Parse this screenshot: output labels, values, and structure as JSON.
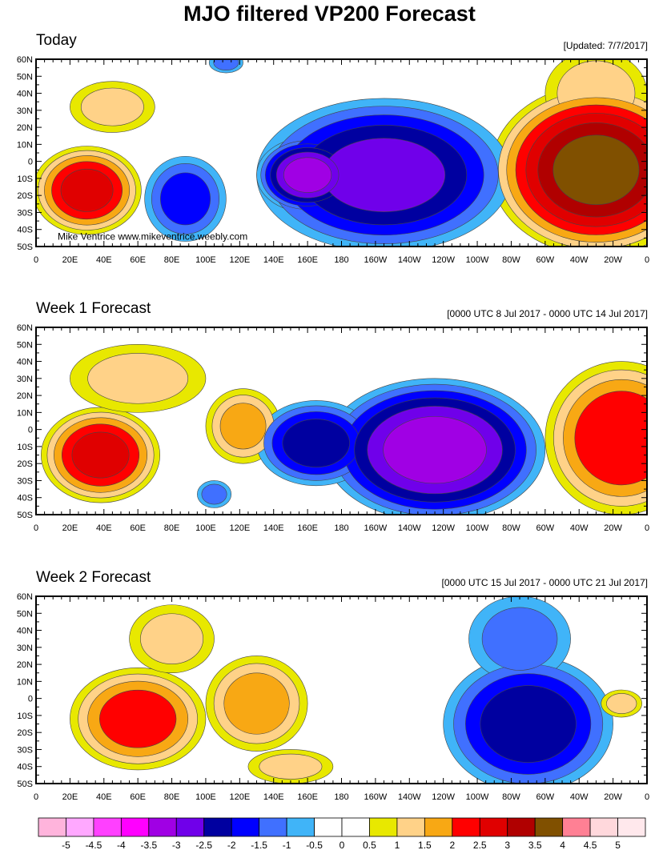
{
  "title": "MJO filtered VP200 Forecast",
  "credit": "Mike Ventrice www.mikeventrice.weebly.com",
  "lat_labels": [
    "60N",
    "50N",
    "40N",
    "30N",
    "20N",
    "10N",
    "0",
    "10S",
    "20S",
    "30S",
    "40S",
    "50S"
  ],
  "lon_labels": [
    "0",
    "20E",
    "40E",
    "60E",
    "80E",
    "100E",
    "120E",
    "140E",
    "160E",
    "180",
    "160W",
    "140W",
    "120W",
    "100W",
    "80W",
    "60W",
    "40W",
    "20W",
    "0"
  ],
  "colorbar": {
    "labels": [
      "-5",
      "-4.5",
      "-4",
      "-3.5",
      "-3",
      "-2.5",
      "-2",
      "-1.5",
      "-1",
      "-0.5",
      "0",
      "0.5",
      "1",
      "1.5",
      "2",
      "2.5",
      "3",
      "3.5",
      "4",
      "4.5",
      "5"
    ],
    "colors": [
      "#ffb4dc",
      "#ffa8ff",
      "#ff40ff",
      "#ff00ff",
      "#a000e4",
      "#7000ea",
      "#0000a0",
      "#0000ff",
      "#4070ff",
      "#40b4f8",
      "#ffffff",
      "#ffffff",
      "#e8e800",
      "#ffd288",
      "#f8a814",
      "#ff0000",
      "#e00000",
      "#b00000",
      "#805000",
      "#ff8094",
      "#ffd8dc",
      "#ffe8ec"
    ]
  },
  "panels": [
    {
      "title": "Today",
      "note": "[Updated: 7/7/2017]",
      "show_credit": true,
      "centers": [
        {
          "lon": 30,
          "lat": -17,
          "value": 2.6,
          "rlon": 32,
          "rlat": 26
        },
        {
          "lon": 45,
          "lat": 32,
          "value": 1.1,
          "rlon": 25,
          "rlat": 15
        },
        {
          "lon": 330,
          "lat": -5,
          "value": 3.6,
          "rlon": 62,
          "rlat": 50
        },
        {
          "lon": 330,
          "lat": 40,
          "value": 1.2,
          "rlon": 30,
          "rlat": 25
        },
        {
          "lon": 205,
          "lat": -8,
          "value": -2.6,
          "rlon": 75,
          "rlat": 45
        },
        {
          "lon": 160,
          "lat": -8,
          "value": -3.2,
          "rlon": 30,
          "rlat": 22
        },
        {
          "lon": 88,
          "lat": -22,
          "value": -1.6,
          "rlon": 24,
          "rlat": 25
        },
        {
          "lon": 112,
          "lat": 58,
          "value": -1.1,
          "rlon": 10,
          "rlat": 6
        }
      ]
    },
    {
      "title": "Week 1 Forecast",
      "note": "[0000 UTC 8 Jul 2017 - 0000 UTC 14 Jul 2017]",
      "show_credit": false,
      "centers": [
        {
          "lon": 38,
          "lat": -15,
          "value": 2.6,
          "rlon": 35,
          "rlat": 28
        },
        {
          "lon": 60,
          "lat": 30,
          "value": 1.1,
          "rlon": 40,
          "rlat": 20
        },
        {
          "lon": 122,
          "lat": 2,
          "value": 1.6,
          "rlon": 22,
          "rlat": 22
        },
        {
          "lon": 345,
          "lat": -5,
          "value": 2.4,
          "rlon": 45,
          "rlat": 45
        },
        {
          "lon": 235,
          "lat": -12,
          "value": -3.2,
          "rlon": 65,
          "rlat": 42
        },
        {
          "lon": 165,
          "lat": -8,
          "value": -2.2,
          "rlon": 35,
          "rlat": 25
        },
        {
          "lon": 105,
          "lat": -38,
          "value": -1.1,
          "rlon": 10,
          "rlat": 8
        }
      ]
    },
    {
      "title": "Week 2 Forecast",
      "note": "[0000 UTC 15 Jul 2017 - 0000 UTC 21 Jul 2017]",
      "show_credit": false,
      "centers": [
        {
          "lon": 60,
          "lat": -12,
          "value": 2.2,
          "rlon": 40,
          "rlat": 30
        },
        {
          "lon": 130,
          "lat": -3,
          "value": 1.7,
          "rlon": 30,
          "rlat": 28
        },
        {
          "lon": 80,
          "lat": 35,
          "value": 1.1,
          "rlon": 25,
          "rlat": 20
        },
        {
          "lon": 150,
          "lat": -40,
          "value": 1.1,
          "rlon": 25,
          "rlat": 10
        },
        {
          "lon": 290,
          "lat": -15,
          "value": -2.2,
          "rlon": 50,
          "rlat": 40
        },
        {
          "lon": 285,
          "lat": 35,
          "value": -1.1,
          "rlon": 30,
          "rlat": 25
        },
        {
          "lon": 345,
          "lat": -3,
          "value": 1.1,
          "rlon": 12,
          "rlat": 8
        }
      ]
    }
  ]
}
